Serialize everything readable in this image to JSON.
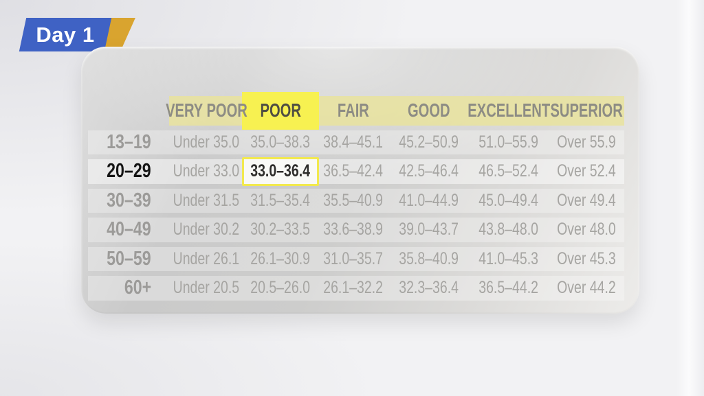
{
  "badge": {
    "label": "Day 1"
  },
  "colors": {
    "badge_blue": "#3f62c4",
    "badge_gold": "#d9a42f",
    "header_band": "rgba(233,227,157,0.85)",
    "column_highlight": "#f7f151",
    "cell_box_border": "#f2e94e"
  },
  "chart_data": {
    "type": "table",
    "column_headers": [
      "VERY POOR",
      "POOR",
      "FAIR",
      "GOOD",
      "EXCELLENT",
      "SUPERIOR"
    ],
    "row_labels": [
      "13–19",
      "20–29",
      "30–39",
      "40–49",
      "50–59",
      "60+"
    ],
    "rows": [
      [
        "Under 35.0",
        "35.0–38.3",
        "38.4–45.1",
        "45.2–50.9",
        "51.0–55.9",
        "Over 55.9"
      ],
      [
        "Under 33.0",
        "33.0–36.4",
        "36.5–42.4",
        "42.5–46.4",
        "46.5–52.4",
        "Over 52.4"
      ],
      [
        "Under 31.5",
        "31.5–35.4",
        "35.5–40.9",
        "41.0–44.9",
        "45.0–49.4",
        "Over 49.4"
      ],
      [
        "Under 30.2",
        "30.2–33.5",
        "33.6–38.9",
        "39.0–43.7",
        "43.8–48.0",
        "Over 48.0"
      ],
      [
        "Under 26.1",
        "26.1–30.9",
        "31.0–35.7",
        "35.8–40.9",
        "41.0–45.3",
        "Over 45.3"
      ],
      [
        "Under 20.5",
        "20.5–26.0",
        "26.1–32.2",
        "32.3–36.4",
        "36.5–44.2",
        "Over 44.2"
      ]
    ],
    "highlighted_column_index": 1,
    "highlighted_row_index": 1,
    "highlighted_cell": {
      "row": "20–29",
      "column": "POOR",
      "value": "33.0–36.4"
    },
    "legend_position": "none",
    "grid": false
  }
}
